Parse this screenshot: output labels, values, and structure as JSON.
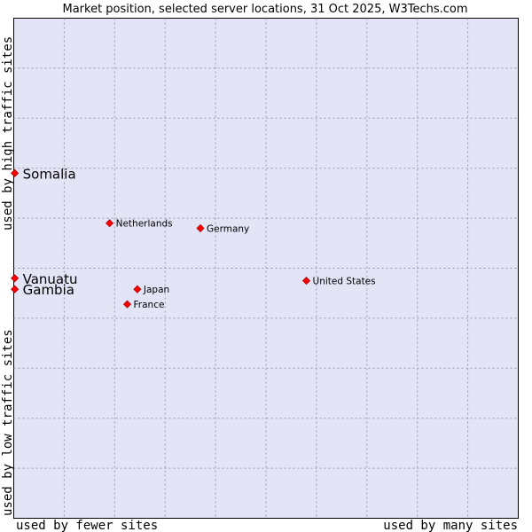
{
  "chart_data": {
    "type": "scatter",
    "title": "Market position, selected server locations, 31 Oct 2025, W3Techs.com",
    "xlabel_left": "used by fewer sites",
    "xlabel_right": "used by many sites",
    "ylabel_bottom": "used by low traffic sites",
    "ylabel_top": "used by high traffic sites",
    "xlim": [
      0,
      10
    ],
    "ylim": [
      0,
      10
    ],
    "grid": true,
    "colors": {
      "plot_bg": "#e4e4f7",
      "grid": "#9999aa",
      "marker": "#ff0000",
      "marker_edge": "#aa0000"
    },
    "points": [
      {
        "name": "Somalia",
        "x": 0.02,
        "y": 6.9,
        "size": "large"
      },
      {
        "name": "Netherlands",
        "x": 1.9,
        "y": 5.9,
        "size": "small"
      },
      {
        "name": "Germany",
        "x": 3.7,
        "y": 5.8,
        "size": "small"
      },
      {
        "name": "Vanuatu",
        "x": 0.02,
        "y": 4.8,
        "size": "large"
      },
      {
        "name": "Gambia",
        "x": 0.02,
        "y": 4.58,
        "size": "large"
      },
      {
        "name": "Japan",
        "x": 2.45,
        "y": 4.58,
        "size": "small"
      },
      {
        "name": "France",
        "x": 2.25,
        "y": 4.28,
        "size": "small"
      },
      {
        "name": "United States",
        "x": 5.8,
        "y": 4.75,
        "size": "small"
      }
    ]
  }
}
